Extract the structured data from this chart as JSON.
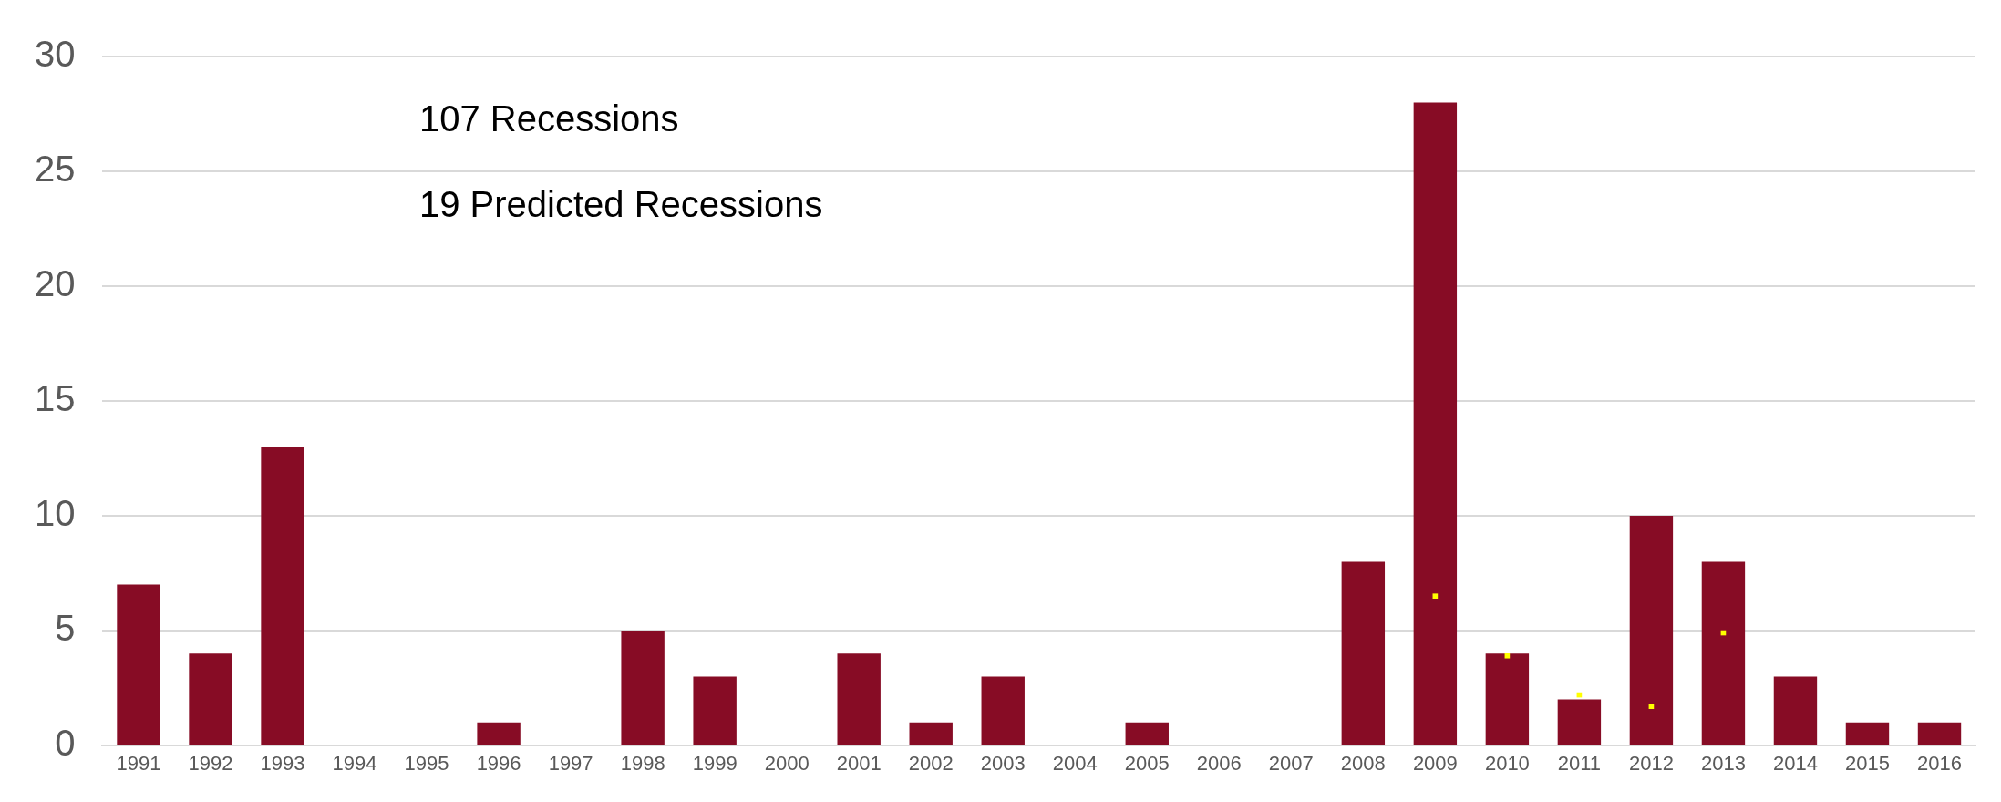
{
  "chart_data": {
    "type": "bar",
    "categories": [
      "1991",
      "1992",
      "1993",
      "1994",
      "1995",
      "1996",
      "1997",
      "1998",
      "1999",
      "2000",
      "2001",
      "2002",
      "2003",
      "2004",
      "2005",
      "2006",
      "2007",
      "2008",
      "2009",
      "2010",
      "2011",
      "2012",
      "2013",
      "2014",
      "2015",
      "2016"
    ],
    "series": [
      {
        "color": "#870c25",
        "values": [
          7,
          4,
          13,
          0,
          0,
          1,
          0,
          5,
          3,
          0,
          4,
          1,
          3,
          0,
          1,
          0,
          0,
          8,
          28,
          4,
          2,
          10,
          8,
          3,
          1,
          1
        ]
      },
      {
        "type": "scatter",
        "color": "#ffff00",
        "marker": "square",
        "values": [
          null,
          null,
          null,
          null,
          null,
          null,
          null,
          null,
          null,
          null,
          null,
          null,
          null,
          null,
          null,
          null,
          null,
          null,
          6.5,
          3.9,
          2.2,
          1.7,
          4.9,
          null,
          null,
          null
        ]
      }
    ],
    "annotations": [
      "107 Recessions",
      "19 Predicted Recessions"
    ],
    "ylim": [
      0,
      30
    ],
    "yticks": [
      0,
      5,
      10,
      15,
      20,
      25,
      30
    ],
    "grid": "y",
    "legend": false
  }
}
